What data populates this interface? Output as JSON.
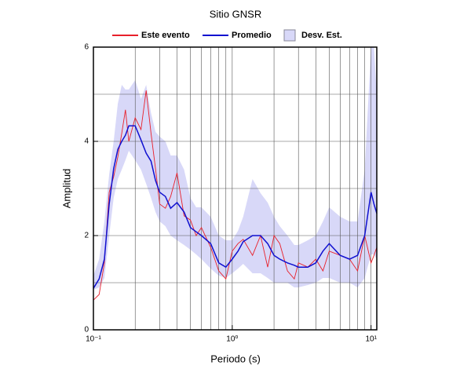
{
  "chart_data": {
    "type": "line",
    "title": "Sitio GNSR",
    "x_label": "Periodo (s)",
    "y_label": "Amplitud",
    "xlog": true,
    "xlim": [
      0.1,
      11
    ],
    "ylim": [
      0,
      6
    ],
    "xticks": [
      {
        "value": 0.1,
        "label": "10⁻¹"
      },
      {
        "value": 1,
        "label": "10⁰"
      },
      {
        "value": 10,
        "label": "10¹"
      }
    ],
    "yticks": [
      0,
      2,
      4,
      6
    ],
    "xgrid": [
      0.2,
      0.3,
      0.4,
      0.5,
      0.6,
      0.7,
      0.8,
      0.9,
      1,
      2,
      3,
      4,
      5,
      6,
      7,
      8,
      9,
      10
    ],
    "ygrid": [
      1,
      2,
      3,
      4,
      5
    ],
    "legend": "top",
    "x": [
      0.1,
      0.11,
      0.12,
      0.13,
      0.14,
      0.15,
      0.16,
      0.17,
      0.18,
      0.2,
      0.22,
      0.24,
      0.26,
      0.28,
      0.3,
      0.33,
      0.36,
      0.4,
      0.45,
      0.5,
      0.55,
      0.6,
      0.7,
      0.8,
      0.9,
      1,
      1.1,
      1.2,
      1.4,
      1.6,
      1.8,
      2,
      2.2,
      2.5,
      2.8,
      3,
      3.5,
      4,
      4.5,
      5,
      6,
      7,
      8,
      9,
      10,
      10.5,
      11
    ],
    "band": {
      "name": "Desv. Est.",
      "color": "#d8d8f8",
      "lower": [
        0.85,
        0.9,
        1.1,
        2.0,
        2.8,
        3.2,
        3.4,
        3.6,
        3.8,
        3.6,
        3.4,
        3.1,
        2.8,
        2.5,
        2.3,
        2.2,
        2.0,
        1.9,
        1.8,
        1.7,
        1.6,
        1.5,
        1.3,
        1.15,
        1.1,
        1.2,
        1.3,
        1.4,
        1.2,
        1.2,
        1.1,
        1.0,
        1.0,
        1.0,
        0.9,
        0.9,
        0.95,
        1.0,
        1.1,
        1.1,
        1.0,
        1.0,
        0.9,
        1.1,
        1.6,
        1.6,
        1.5
      ],
      "upper": [
        1.15,
        1.5,
        2.3,
        3.3,
        4.0,
        4.8,
        5.2,
        5.1,
        5.1,
        5.3,
        4.9,
        5.2,
        4.6,
        4.2,
        4.1,
        4.0,
        3.7,
        3.7,
        3.4,
        2.8,
        2.6,
        2.6,
        2.4,
        2.0,
        1.9,
        1.9,
        2.1,
        2.4,
        3.2,
        2.9,
        2.7,
        2.4,
        2.2,
        2.0,
        1.8,
        1.8,
        1.9,
        2.0,
        2.3,
        2.6,
        2.4,
        2.3,
        2.3,
        3.4,
        6.0,
        6.0,
        5.0
      ]
    },
    "series": [
      {
        "name": "Este evento",
        "color": "#e8202a",
        "values": [
          0.63,
          0.75,
          1.42,
          2.92,
          3.25,
          3.67,
          4.17,
          4.67,
          4.0,
          4.5,
          4.25,
          5.08,
          4.17,
          3.42,
          2.67,
          2.58,
          2.83,
          3.33,
          2.42,
          2.33,
          2.0,
          2.17,
          1.75,
          1.25,
          1.08,
          1.67,
          1.83,
          1.92,
          1.58,
          2.0,
          1.33,
          2.0,
          1.83,
          1.25,
          1.08,
          1.42,
          1.33,
          1.5,
          1.25,
          1.67,
          1.58,
          1.5,
          1.25,
          2.0,
          1.42,
          1.58,
          1.75
        ]
      },
      {
        "name": "Promedio",
        "color": "#1010d0",
        "values": [
          0.88,
          1.08,
          1.5,
          2.67,
          3.42,
          3.83,
          4.0,
          4.13,
          4.33,
          4.33,
          4.03,
          3.75,
          3.58,
          3.17,
          2.92,
          2.83,
          2.58,
          2.7,
          2.5,
          2.17,
          2.08,
          2.0,
          1.83,
          1.42,
          1.33,
          1.5,
          1.67,
          1.87,
          2.0,
          2.0,
          1.83,
          1.58,
          1.5,
          1.42,
          1.37,
          1.33,
          1.33,
          1.42,
          1.67,
          1.83,
          1.58,
          1.5,
          1.58,
          2.0,
          2.92,
          2.67,
          2.47
        ]
      }
    ]
  }
}
